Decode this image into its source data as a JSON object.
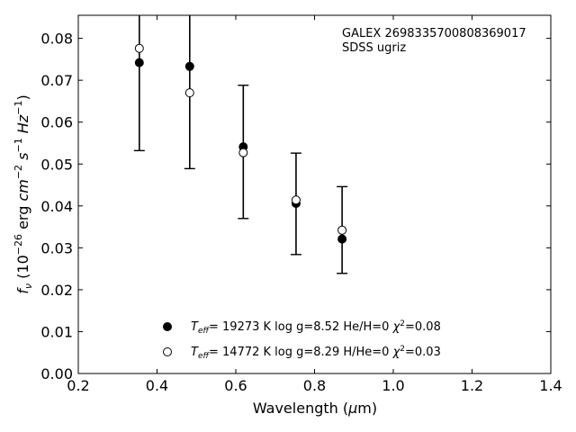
{
  "chart_data": {
    "type": "scatter",
    "title": "",
    "xlabel": "Wavelength (μm)",
    "ylabel": "fν (10⁻²⁶ erg cm⁻² s⁻¹ Hz⁻¹)",
    "xlim": [
      0.2,
      1.4
    ],
    "ylim": [
      0.0,
      0.0855
    ],
    "xticks": [
      "0.2",
      "0.4",
      "0.6",
      "0.8",
      "1.0",
      "1.2",
      "1.4"
    ],
    "yticks": [
      "0.00",
      "0.01",
      "0.02",
      "0.03",
      "0.04",
      "0.05",
      "0.06",
      "0.07",
      "0.08"
    ],
    "grid": false,
    "annotations": [
      "GALEX 2698335700808369017",
      "SDSS ugriz"
    ],
    "observed": {
      "x": [
        0.355,
        0.483,
        0.619,
        0.753,
        0.87
      ],
      "y_low": [
        0.0532,
        0.0489,
        0.037,
        0.0284,
        0.0239
      ],
      "y_high": [
        0.0855,
        0.0855,
        0.0688,
        0.0526,
        0.0446
      ]
    },
    "series": [
      {
        "marker": "filled",
        "legend_text": "Teff= 19273 K  log g=8.52  He/H=0  χ²=0.08",
        "x": [
          0.355,
          0.483,
          0.619,
          0.753,
          0.87
        ],
        "y": [
          0.0742,
          0.0733,
          0.0541,
          0.0406,
          0.0321
        ]
      },
      {
        "marker": "open",
        "legend_text": "Teff= 14772 K  log g=8.29  H/He=0  χ²=0.03",
        "x": [
          0.355,
          0.483,
          0.619,
          0.753,
          0.87
        ],
        "y": [
          0.0776,
          0.067,
          0.0527,
          0.0414,
          0.0342
        ]
      }
    ],
    "legend_position": "lower-center"
  }
}
